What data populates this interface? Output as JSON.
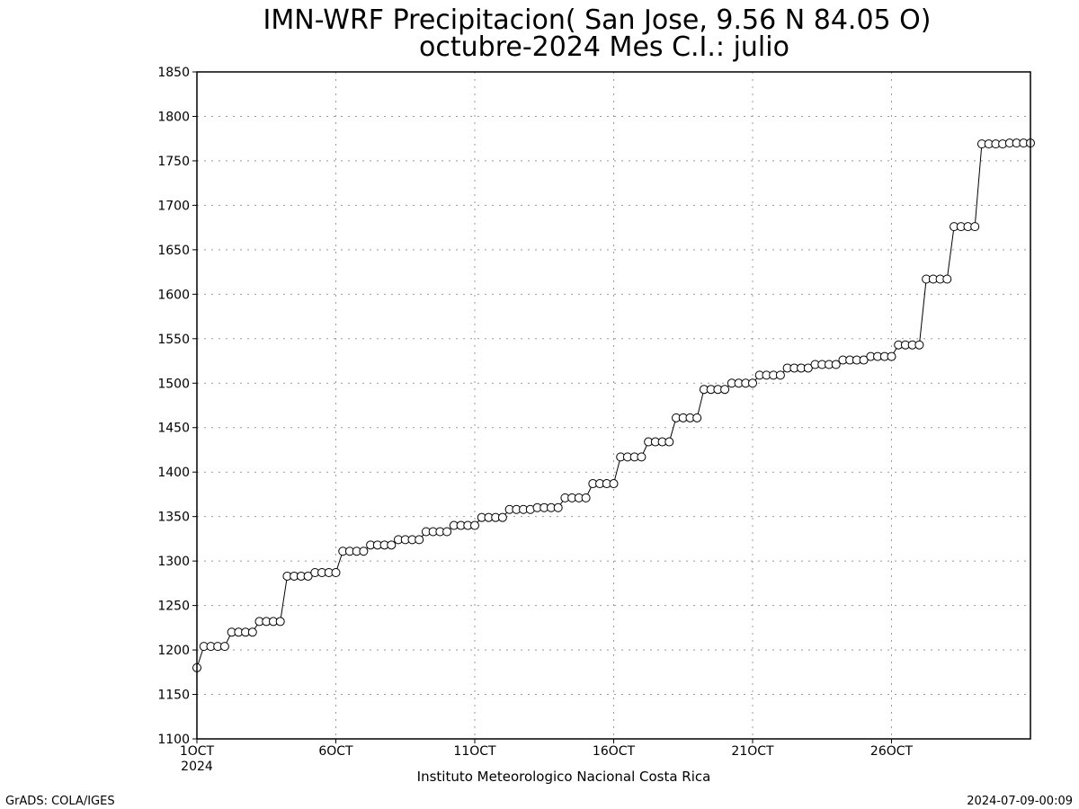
{
  "chart_data": {
    "type": "line",
    "title": "IMN-WRF  Precipitacion( San Jose, 9.56  N 84.05  O)",
    "subtitle": "octubre-2024 Mes C.I.: julio",
    "xlabel": "",
    "ylabel": "",
    "ylim": [
      1100,
      1850
    ],
    "yticks": [
      1100,
      1150,
      1200,
      1250,
      1300,
      1350,
      1400,
      1450,
      1500,
      1550,
      1600,
      1650,
      1700,
      1750,
      1800,
      1850
    ],
    "xlim": [
      1,
      31
    ],
    "xticks": [
      {
        "x": 1,
        "label": "1OCT",
        "sublabel": "2024"
      },
      {
        "x": 6,
        "label": "6OCT"
      },
      {
        "x": 11,
        "label": "11OCT"
      },
      {
        "x": 16,
        "label": "16OCT"
      },
      {
        "x": 21,
        "label": "21OCT"
      },
      {
        "x": 26,
        "label": "26OCT"
      }
    ],
    "grid": true,
    "marker": "open-circle",
    "series": [
      {
        "values": [
          1180,
          1204,
          1204,
          1204,
          1204,
          1220,
          1220,
          1220,
          1220,
          1232,
          1232,
          1232,
          1232,
          1283,
          1283,
          1283,
          1283,
          1287,
          1287,
          1287,
          1287,
          1311,
          1311,
          1311,
          1311,
          1318,
          1318,
          1318,
          1318,
          1324,
          1324,
          1324,
          1324,
          1333,
          1333,
          1333,
          1333,
          1340,
          1340,
          1340,
          1340,
          1349,
          1349,
          1349,
          1349,
          1358,
          1358,
          1358,
          1358,
          1360,
          1360,
          1360,
          1360,
          1371,
          1371,
          1371,
          1371,
          1387,
          1387,
          1387,
          1387,
          1417,
          1417,
          1417,
          1417,
          1434,
          1434,
          1434,
          1434,
          1461,
          1461,
          1461,
          1461,
          1493,
          1493,
          1493,
          1493,
          1500,
          1500,
          1500,
          1500,
          1509,
          1509,
          1509,
          1509,
          1517,
          1517,
          1517,
          1517,
          1521,
          1521,
          1521,
          1521,
          1526,
          1526,
          1526,
          1526,
          1530,
          1530,
          1530,
          1530,
          1543,
          1543,
          1543,
          1543,
          1617,
          1617,
          1617,
          1617,
          1676,
          1676,
          1676,
          1676,
          1769,
          1769,
          1769,
          1769,
          1770,
          1770,
          1770,
          1770
        ]
      }
    ]
  },
  "footer": {
    "institution": "Instituto Meteorologico Nacional Costa Rica",
    "left": "GrADS: COLA/IGES",
    "right": "2024-07-09-00:09"
  }
}
